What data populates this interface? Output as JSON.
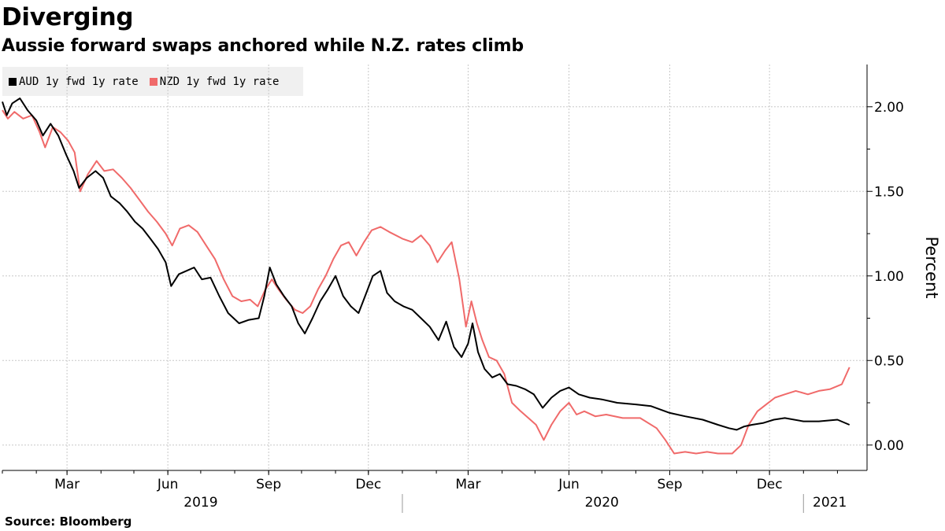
{
  "header": {
    "title": "Diverging",
    "subtitle": "Aussie forward swaps anchored while N.Z. rates climb"
  },
  "footer": {
    "source": "Source: Bloomberg"
  },
  "colors": {
    "aud": "#000000",
    "nzd": "#f06a6a",
    "grid": "#c8c8c8",
    "legend_bg": "#f0f0f0"
  },
  "chart_data": {
    "type": "line",
    "title": "Diverging",
    "subtitle": "Aussie forward swaps anchored while N.Z. rates climb",
    "ylabel": "Percent",
    "xlabel": "",
    "ylim": [
      -0.15,
      2.25
    ],
    "xlim": [
      "2019-01-01",
      "2021-02-28"
    ],
    "y_ticks": [
      0.0,
      0.5,
      1.0,
      1.5,
      2.0
    ],
    "y_tick_labels": [
      "0.00",
      "0.50",
      "1.00",
      "1.50",
      "2.00"
    ],
    "x_tick_labels": [
      {
        "label": "Mar",
        "date": "2019-03-01"
      },
      {
        "label": "Jun",
        "date": "2019-06-01"
      },
      {
        "label": "Sep",
        "date": "2019-09-01"
      },
      {
        "label": "Dec",
        "date": "2019-12-01"
      },
      {
        "label": "Mar",
        "date": "2020-03-01"
      },
      {
        "label": "Jun",
        "date": "2020-06-01"
      },
      {
        "label": "Sep",
        "date": "2020-09-01"
      },
      {
        "label": "Dec",
        "date": "2020-12-01"
      }
    ],
    "year_labels": [
      {
        "label": "2019",
        "date": "2019-07-01"
      },
      {
        "label": "2020",
        "date": "2020-07-01"
      },
      {
        "label": "2021",
        "date": "2021-01-25"
      }
    ],
    "year_separators": [
      "2020-01-01",
      "2021-01-01"
    ],
    "grid": true,
    "legend_position": "top-left",
    "series": [
      {
        "name": "AUD 1y fwd 1y rate",
        "color": "#000000",
        "points": [
          [
            "2019-01-01",
            2.03
          ],
          [
            "2019-01-05",
            1.95
          ],
          [
            "2019-01-10",
            2.02
          ],
          [
            "2019-01-17",
            2.05
          ],
          [
            "2019-01-24",
            1.98
          ],
          [
            "2019-02-01",
            1.92
          ],
          [
            "2019-02-07",
            1.83
          ],
          [
            "2019-02-14",
            1.9
          ],
          [
            "2019-02-21",
            1.83
          ],
          [
            "2019-02-28",
            1.72
          ],
          [
            "2019-03-07",
            1.62
          ],
          [
            "2019-03-12",
            1.52
          ],
          [
            "2019-03-19",
            1.58
          ],
          [
            "2019-03-27",
            1.62
          ],
          [
            "2019-04-03",
            1.58
          ],
          [
            "2019-04-10",
            1.47
          ],
          [
            "2019-04-18",
            1.43
          ],
          [
            "2019-04-25",
            1.38
          ],
          [
            "2019-05-02",
            1.32
          ],
          [
            "2019-05-09",
            1.28
          ],
          [
            "2019-05-16",
            1.22
          ],
          [
            "2019-05-23",
            1.16
          ],
          [
            "2019-05-30",
            1.08
          ],
          [
            "2019-06-04",
            0.94
          ],
          [
            "2019-06-11",
            1.01
          ],
          [
            "2019-06-18",
            1.03
          ],
          [
            "2019-06-25",
            1.05
          ],
          [
            "2019-07-02",
            0.98
          ],
          [
            "2019-07-10",
            0.99
          ],
          [
            "2019-07-18",
            0.88
          ],
          [
            "2019-07-26",
            0.78
          ],
          [
            "2019-08-05",
            0.72
          ],
          [
            "2019-08-14",
            0.74
          ],
          [
            "2019-08-23",
            0.75
          ],
          [
            "2019-08-28",
            0.88
          ],
          [
            "2019-09-02",
            1.05
          ],
          [
            "2019-09-08",
            0.95
          ],
          [
            "2019-09-15",
            0.88
          ],
          [
            "2019-09-22",
            0.82
          ],
          [
            "2019-09-28",
            0.72
          ],
          [
            "2019-10-04",
            0.66
          ],
          [
            "2019-10-11",
            0.75
          ],
          [
            "2019-10-18",
            0.85
          ],
          [
            "2019-10-25",
            0.92
          ],
          [
            "2019-11-01",
            1.0
          ],
          [
            "2019-11-08",
            0.88
          ],
          [
            "2019-11-15",
            0.82
          ],
          [
            "2019-11-22",
            0.78
          ],
          [
            "2019-11-28",
            0.88
          ],
          [
            "2019-12-05",
            1.0
          ],
          [
            "2019-12-12",
            1.03
          ],
          [
            "2019-12-18",
            0.9
          ],
          [
            "2019-12-25",
            0.85
          ],
          [
            "2020-01-02",
            0.82
          ],
          [
            "2020-01-10",
            0.8
          ],
          [
            "2020-01-18",
            0.75
          ],
          [
            "2020-01-26",
            0.7
          ],
          [
            "2020-02-03",
            0.62
          ],
          [
            "2020-02-10",
            0.73
          ],
          [
            "2020-02-17",
            0.58
          ],
          [
            "2020-02-24",
            0.52
          ],
          [
            "2020-03-01",
            0.6
          ],
          [
            "2020-03-05",
            0.72
          ],
          [
            "2020-03-10",
            0.55
          ],
          [
            "2020-03-16",
            0.45
          ],
          [
            "2020-03-23",
            0.4
          ],
          [
            "2020-03-30",
            0.42
          ],
          [
            "2020-04-06",
            0.36
          ],
          [
            "2020-04-14",
            0.35
          ],
          [
            "2020-04-22",
            0.33
          ],
          [
            "2020-04-30",
            0.3
          ],
          [
            "2020-05-08",
            0.22
          ],
          [
            "2020-05-16",
            0.28
          ],
          [
            "2020-05-24",
            0.32
          ],
          [
            "2020-06-01",
            0.34
          ],
          [
            "2020-06-10",
            0.3
          ],
          [
            "2020-06-20",
            0.28
          ],
          [
            "2020-07-01",
            0.27
          ],
          [
            "2020-07-15",
            0.25
          ],
          [
            "2020-08-01",
            0.24
          ],
          [
            "2020-08-15",
            0.23
          ],
          [
            "2020-09-01",
            0.19
          ],
          [
            "2020-09-15",
            0.17
          ],
          [
            "2020-10-01",
            0.15
          ],
          [
            "2020-10-15",
            0.12
          ],
          [
            "2020-10-25",
            0.1
          ],
          [
            "2020-11-01",
            0.09
          ],
          [
            "2020-11-08",
            0.11
          ],
          [
            "2020-11-15",
            0.12
          ],
          [
            "2020-11-25",
            0.13
          ],
          [
            "2020-12-05",
            0.15
          ],
          [
            "2020-12-15",
            0.16
          ],
          [
            "2021-01-01",
            0.14
          ],
          [
            "2021-01-15",
            0.14
          ],
          [
            "2021-02-01",
            0.15
          ],
          [
            "2021-02-12",
            0.12
          ]
        ]
      },
      {
        "name": "NZD 1y fwd 1y rate",
        "color": "#f06a6a",
        "points": [
          [
            "2019-01-01",
            1.98
          ],
          [
            "2019-01-06",
            1.93
          ],
          [
            "2019-01-12",
            1.97
          ],
          [
            "2019-01-20",
            1.93
          ],
          [
            "2019-01-28",
            1.95
          ],
          [
            "2019-02-04",
            1.85
          ],
          [
            "2019-02-09",
            1.76
          ],
          [
            "2019-02-16",
            1.88
          ],
          [
            "2019-02-23",
            1.85
          ],
          [
            "2019-03-02",
            1.8
          ],
          [
            "2019-03-08",
            1.73
          ],
          [
            "2019-03-13",
            1.5
          ],
          [
            "2019-03-20",
            1.6
          ],
          [
            "2019-03-28",
            1.68
          ],
          [
            "2019-04-04",
            1.62
          ],
          [
            "2019-04-12",
            1.63
          ],
          [
            "2019-04-20",
            1.58
          ],
          [
            "2019-04-28",
            1.52
          ],
          [
            "2019-05-06",
            1.45
          ],
          [
            "2019-05-14",
            1.38
          ],
          [
            "2019-05-22",
            1.32
          ],
          [
            "2019-05-30",
            1.25
          ],
          [
            "2019-06-05",
            1.18
          ],
          [
            "2019-06-12",
            1.28
          ],
          [
            "2019-06-20",
            1.3
          ],
          [
            "2019-06-28",
            1.26
          ],
          [
            "2019-07-06",
            1.18
          ],
          [
            "2019-07-14",
            1.1
          ],
          [
            "2019-07-22",
            0.98
          ],
          [
            "2019-07-30",
            0.88
          ],
          [
            "2019-08-07",
            0.85
          ],
          [
            "2019-08-15",
            0.86
          ],
          [
            "2019-08-22",
            0.82
          ],
          [
            "2019-08-29",
            0.92
          ],
          [
            "2019-09-04",
            0.98
          ],
          [
            "2019-09-10",
            0.92
          ],
          [
            "2019-09-17",
            0.86
          ],
          [
            "2019-09-25",
            0.8
          ],
          [
            "2019-10-02",
            0.78
          ],
          [
            "2019-10-09",
            0.82
          ],
          [
            "2019-10-16",
            0.92
          ],
          [
            "2019-10-23",
            1.0
          ],
          [
            "2019-10-30",
            1.1
          ],
          [
            "2019-11-06",
            1.18
          ],
          [
            "2019-11-13",
            1.2
          ],
          [
            "2019-11-20",
            1.12
          ],
          [
            "2019-11-27",
            1.2
          ],
          [
            "2019-12-04",
            1.27
          ],
          [
            "2019-12-12",
            1.29
          ],
          [
            "2019-12-20",
            1.26
          ],
          [
            "2020-01-01",
            1.22
          ],
          [
            "2020-01-10",
            1.2
          ],
          [
            "2020-01-18",
            1.24
          ],
          [
            "2020-01-26",
            1.18
          ],
          [
            "2020-02-02",
            1.08
          ],
          [
            "2020-02-09",
            1.15
          ],
          [
            "2020-02-15",
            1.2
          ],
          [
            "2020-02-22",
            0.98
          ],
          [
            "2020-02-28",
            0.7
          ],
          [
            "2020-03-04",
            0.85
          ],
          [
            "2020-03-09",
            0.72
          ],
          [
            "2020-03-14",
            0.62
          ],
          [
            "2020-03-20",
            0.52
          ],
          [
            "2020-03-27",
            0.5
          ],
          [
            "2020-04-03",
            0.42
          ],
          [
            "2020-04-10",
            0.25
          ],
          [
            "2020-04-18",
            0.2
          ],
          [
            "2020-04-25",
            0.16
          ],
          [
            "2020-05-02",
            0.12
          ],
          [
            "2020-05-09",
            0.03
          ],
          [
            "2020-05-16",
            0.12
          ],
          [
            "2020-05-24",
            0.2
          ],
          [
            "2020-06-01",
            0.25
          ],
          [
            "2020-06-08",
            0.18
          ],
          [
            "2020-06-15",
            0.2
          ],
          [
            "2020-06-25",
            0.17
          ],
          [
            "2020-07-05",
            0.18
          ],
          [
            "2020-07-20",
            0.16
          ],
          [
            "2020-08-05",
            0.16
          ],
          [
            "2020-08-20",
            0.1
          ],
          [
            "2020-08-28",
            0.03
          ],
          [
            "2020-09-05",
            -0.05
          ],
          [
            "2020-09-15",
            -0.04
          ],
          [
            "2020-09-25",
            -0.05
          ],
          [
            "2020-10-05",
            -0.04
          ],
          [
            "2020-10-15",
            -0.05
          ],
          [
            "2020-10-28",
            -0.05
          ],
          [
            "2020-11-05",
            0.0
          ],
          [
            "2020-11-12",
            0.12
          ],
          [
            "2020-11-20",
            0.2
          ],
          [
            "2020-11-28",
            0.24
          ],
          [
            "2020-12-06",
            0.28
          ],
          [
            "2020-12-15",
            0.3
          ],
          [
            "2020-12-25",
            0.32
          ],
          [
            "2021-01-05",
            0.3
          ],
          [
            "2021-01-15",
            0.32
          ],
          [
            "2021-01-25",
            0.33
          ],
          [
            "2021-02-05",
            0.36
          ],
          [
            "2021-02-12",
            0.46
          ]
        ]
      }
    ]
  }
}
